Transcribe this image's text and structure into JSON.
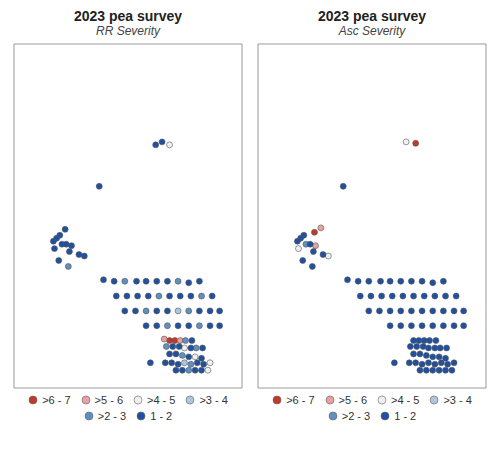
{
  "chart_data": [
    {
      "type": "scatter",
      "title": "2023 pea survey",
      "subtitle": "RR Severity",
      "xlim": [
        -120.5,
        -109.8
      ],
      "ylim": [
        48.9,
        60.5
      ],
      "tick_labels": false,
      "grid": false,
      "legend": "bottom",
      "marker": "circle",
      "series": [
        {
          "name": ">6 - 7",
          "color": "#c0392b",
          "x": [
            -113.2,
            -112.95
          ],
          "values": [
            50.5,
            50.5
          ]
        },
        {
          "name": ">5 - 6",
          "color": "#e8a0a0",
          "x": [
            -113.45,
            -112.7
          ],
          "values": [
            50.55,
            50.5
          ]
        },
        {
          "name": ">4 - 5",
          "color": "#f0f0f0",
          "x": [
            -113.2,
            -112.5,
            -112.0,
            -111.3,
            -111.4
          ],
          "values": [
            57.1,
            50.25,
            49.95,
            49.75,
            49.5
          ]
        },
        {
          "name": ">3 - 4",
          "color": "#aec6e0",
          "x": [
            -112.8,
            -112.5
          ],
          "values": [
            51.5,
            49.75
          ]
        },
        {
          "name": ">2 - 3",
          "color": "#6090c0",
          "x": [
            -117.95,
            -115.3,
            -112.8,
            -113.7,
            -111.7,
            -114.3,
            -112.3,
            -113.3,
            -111.8,
            -112.45,
            -113.35,
            -111.95,
            -112.6,
            -112.2,
            -112.3
          ],
          "values": [
            53.0,
            52.5,
            52.5,
            52.0,
            52.0,
            51.5,
            51.5,
            51.0,
            51.0,
            50.5,
            50.3,
            50.25,
            50.0,
            49.7,
            49.5
          ]
        },
        {
          "name": "1 - 2",
          "color": "#2050a0",
          "x": [
            -113.55,
            -113.85,
            -116.5,
            -118.1,
            -118.35,
            -118.5,
            -118.65,
            -118.25,
            -118.05,
            -117.8,
            -118.6,
            -117.9,
            -117.45,
            -117.2,
            -118.4,
            -116.3,
            -115.8,
            -114.75,
            -114.3,
            -113.8,
            -113.3,
            -112.3,
            -111.8,
            -115.7,
            -115.2,
            -114.7,
            -114.2,
            -113.2,
            -112.7,
            -112.2,
            -111.2,
            -115.3,
            -114.8,
            -113.8,
            -113.3,
            -111.8,
            -111.3,
            -110.85,
            -114.3,
            -113.8,
            -112.8,
            -112.3,
            -111.3,
            -110.85,
            -112.15,
            -113.05,
            -112.75,
            -112.2,
            -111.65,
            -113.2,
            -112.9,
            -112.3,
            -111.7,
            -114.1,
            -113.4,
            -113.1,
            -112.8,
            -111.9,
            -111.6,
            -112.9,
            -112.6,
            -112.0,
            -111.7
          ],
          "values": [
            57.2,
            57.1,
            55.7,
            54.25,
            54.05,
            53.95,
            53.85,
            53.75,
            53.75,
            53.7,
            53.6,
            53.5,
            53.4,
            53.35,
            53.2,
            52.55,
            52.5,
            52.5,
            52.5,
            52.5,
            52.5,
            52.45,
            52.5,
            52.0,
            52.0,
            52.0,
            52.0,
            52.0,
            52.0,
            52.0,
            52.0,
            51.5,
            51.5,
            51.5,
            51.5,
            51.5,
            51.5,
            51.5,
            51.0,
            51.0,
            51.0,
            51.0,
            51.0,
            51.0,
            50.5,
            50.3,
            50.3,
            50.25,
            50.25,
            50.05,
            50.05,
            49.95,
            49.9,
            49.75,
            49.75,
            49.75,
            49.7,
            49.75,
            49.7,
            49.5,
            49.5,
            49.5,
            49.5
          ]
        }
      ]
    },
    {
      "type": "scatter",
      "title": "2023 pea survey",
      "subtitle": "Asc Severity",
      "xlim": [
        -120.5,
        -109.8
      ],
      "ylim": [
        48.9,
        60.5
      ],
      "tick_labels": false,
      "grid": false,
      "legend": "bottom",
      "marker": "circle",
      "series": [
        {
          "name": ">6 - 7",
          "color": "#c0392b",
          "x": [
            -113.1,
            -117.85
          ],
          "values": [
            57.15,
            54.15
          ]
        },
        {
          "name": ">5 - 6",
          "color": "#e8a0a0",
          "x": [
            -117.55,
            -117.8
          ],
          "values": [
            54.3,
            53.7
          ]
        },
        {
          "name": ">4 - 5",
          "color": "#f0f0f0",
          "x": [
            -113.55,
            -118.6,
            -117.2
          ],
          "values": [
            57.2,
            53.6,
            53.35
          ]
        },
        {
          "name": ">3 - 4",
          "color": "#aec6e0",
          "x": [],
          "values": []
        },
        {
          "name": ">2 - 3",
          "color": "#6090c0",
          "x": [
            -118.25
          ],
          "values": [
            53.75
          ]
        },
        {
          "name": "1 - 2",
          "color": "#2050a0",
          "x": [
            -116.5,
            -118.35,
            -118.5,
            -118.65,
            -118.05,
            -117.9,
            -117.45,
            -118.4,
            -117.95,
            -116.3,
            -115.8,
            -115.3,
            -114.75,
            -114.3,
            -113.8,
            -113.3,
            -112.8,
            -112.3,
            -111.8,
            -115.7,
            -115.2,
            -114.7,
            -114.2,
            -113.7,
            -113.2,
            -112.7,
            -112.2,
            -111.7,
            -111.2,
            -115.3,
            -114.8,
            -114.3,
            -113.8,
            -113.3,
            -112.8,
            -112.3,
            -111.8,
            -111.3,
            -110.85,
            -114.3,
            -113.8,
            -113.3,
            -112.8,
            -112.3,
            -111.8,
            -111.3,
            -110.85,
            -113.2,
            -112.95,
            -112.7,
            -112.45,
            -112.15,
            -113.35,
            -113.05,
            -112.75,
            -112.5,
            -112.2,
            -111.95,
            -111.65,
            -113.2,
            -112.9,
            -112.6,
            -112.3,
            -112.0,
            -111.7,
            -114.1,
            -113.4,
            -113.1,
            -112.8,
            -112.5,
            -112.2,
            -111.9,
            -111.6,
            -111.3,
            -112.9,
            -112.6,
            -112.3,
            -112.0,
            -111.7,
            -111.4
          ],
          "values": [
            55.7,
            54.05,
            53.95,
            53.85,
            53.75,
            53.5,
            53.4,
            53.2,
            53.0,
            52.55,
            52.5,
            52.5,
            52.5,
            52.5,
            52.5,
            52.5,
            52.5,
            52.45,
            52.5,
            52.0,
            52.0,
            52.0,
            52.0,
            52.0,
            52.0,
            52.0,
            52.0,
            52.0,
            52.0,
            51.5,
            51.5,
            51.5,
            51.5,
            51.5,
            51.5,
            51.5,
            51.5,
            51.5,
            51.5,
            51.0,
            51.0,
            51.0,
            51.0,
            51.0,
            51.0,
            51.0,
            51.0,
            50.5,
            50.5,
            50.5,
            50.5,
            50.5,
            50.3,
            50.3,
            50.3,
            50.25,
            50.25,
            50.25,
            50.25,
            50.05,
            50.05,
            50.0,
            49.95,
            49.95,
            49.9,
            49.75,
            49.75,
            49.75,
            49.7,
            49.75,
            49.7,
            49.75,
            49.7,
            49.75,
            49.5,
            49.5,
            49.5,
            49.5,
            49.5,
            49.5
          ]
        }
      ]
    }
  ]
}
